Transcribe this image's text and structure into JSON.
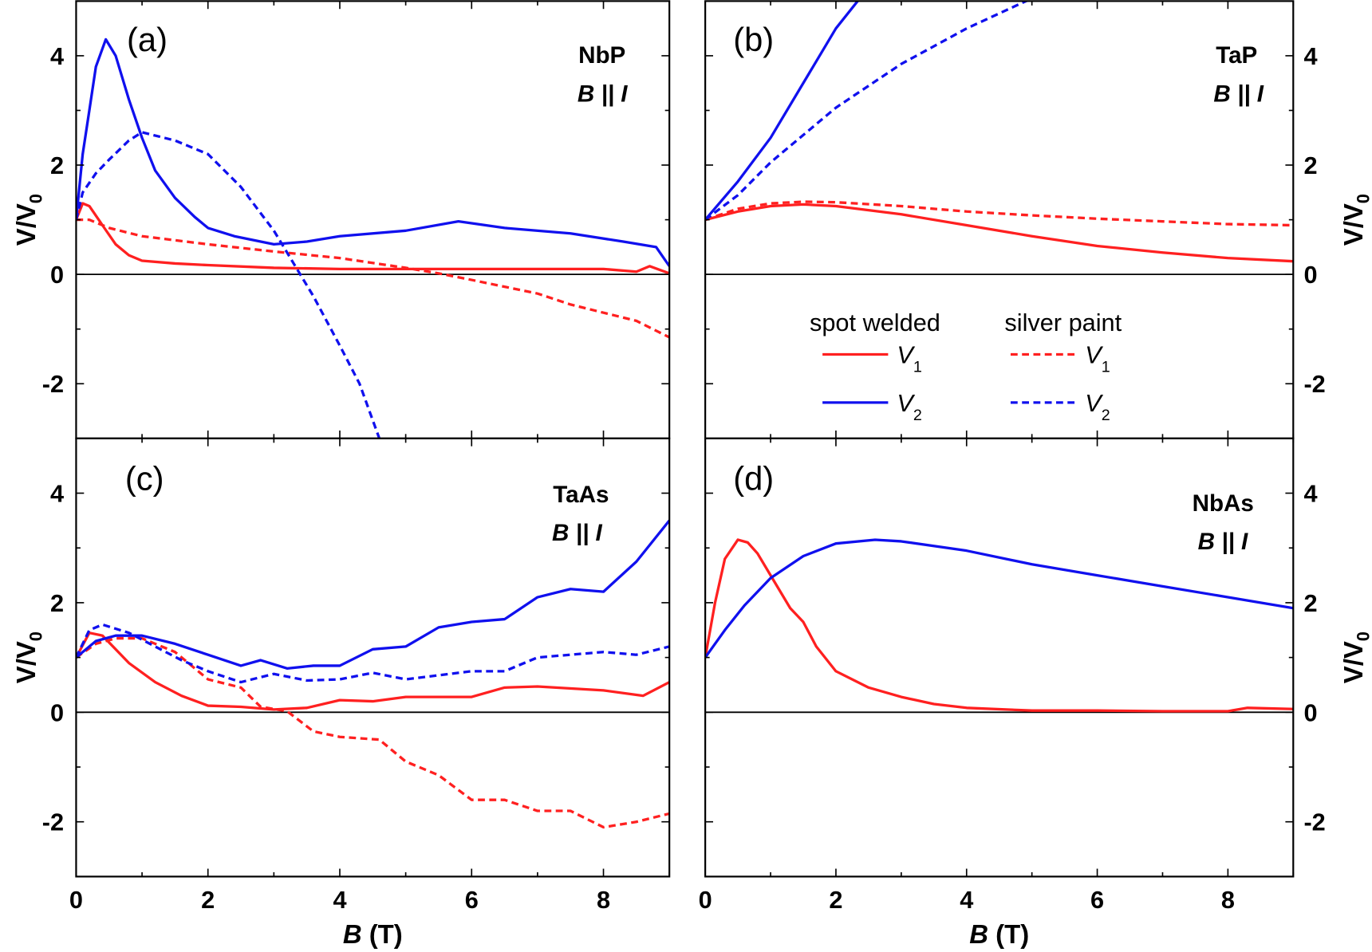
{
  "chart_data": [
    {
      "type": "line",
      "panel_label": "(a)",
      "material": "NbP",
      "condition": "B || I",
      "xlabel": "B (T)",
      "ylabel": "V/V0",
      "xlim": [
        0,
        9
      ],
      "ylim": [
        -3,
        5
      ],
      "xticks": [
        "0",
        "2",
        "4",
        "6",
        "8"
      ],
      "yticks": [
        "-2",
        "0",
        "2",
        "4"
      ],
      "ytick_side": "left",
      "series": [
        {
          "name": "spot welded V1",
          "color": "#ff2020",
          "style": "solid",
          "x": [
            0,
            0.1,
            0.2,
            0.4,
            0.6,
            0.8,
            1,
            1.5,
            2,
            3,
            4,
            5,
            6,
            7,
            8,
            8.5,
            8.7,
            9
          ],
          "y": [
            1.0,
            1.3,
            1.25,
            0.9,
            0.55,
            0.35,
            0.25,
            0.2,
            0.17,
            0.12,
            0.1,
            0.1,
            0.1,
            0.1,
            0.1,
            0.05,
            0.15,
            0.02
          ]
        },
        {
          "name": "silver paint V1",
          "color": "#ff2020",
          "style": "dashed",
          "x": [
            0,
            0.2,
            0.5,
            1,
            2,
            3,
            4,
            5,
            5.5,
            6,
            7,
            7.5,
            8,
            8.5,
            9
          ],
          "y": [
            1.0,
            1.0,
            0.85,
            0.7,
            0.55,
            0.42,
            0.3,
            0.12,
            0.02,
            -0.1,
            -0.35,
            -0.55,
            -0.7,
            -0.85,
            -1.15
          ]
        },
        {
          "name": "spot welded V2",
          "color": "#1010ee",
          "style": "solid",
          "x": [
            0,
            0.1,
            0.2,
            0.3,
            0.45,
            0.6,
            0.8,
            1,
            1.2,
            1.5,
            1.8,
            2,
            2.4,
            2.8,
            3,
            3.5,
            4,
            5,
            5.8,
            6.5,
            7.5,
            8.3,
            8.8,
            9
          ],
          "y": [
            1.0,
            2.2,
            3.0,
            3.8,
            4.3,
            4.0,
            3.2,
            2.5,
            1.9,
            1.4,
            1.05,
            0.85,
            0.7,
            0.6,
            0.55,
            0.6,
            0.7,
            0.8,
            0.97,
            0.85,
            0.75,
            0.6,
            0.5,
            0.15
          ]
        },
        {
          "name": "silver paint V2",
          "color": "#1010ee",
          "style": "dashed",
          "x": [
            0,
            0.1,
            0.3,
            0.5,
            0.8,
            1,
            1.5,
            2,
            2.5,
            3,
            3.3,
            3.6,
            4,
            4.3,
            4.6
          ],
          "y": [
            1.0,
            1.5,
            1.85,
            2.1,
            2.45,
            2.6,
            2.45,
            2.2,
            1.6,
            0.8,
            0.2,
            -0.4,
            -1.3,
            -2.0,
            -3.0
          ]
        }
      ]
    },
    {
      "type": "line",
      "panel_label": "(b)",
      "material": "TaP",
      "condition": "B || I",
      "xlabel": "B (T)",
      "ylabel": "V/V0",
      "xlim": [
        0,
        9
      ],
      "ylim": [
        -3,
        5
      ],
      "xticks": [
        "0",
        "2",
        "4",
        "6",
        "8"
      ],
      "yticks": [
        "-2",
        "0",
        "2",
        "4"
      ],
      "ytick_side": "right",
      "series": [
        {
          "name": "spot welded V1",
          "color": "#ff2020",
          "style": "solid",
          "x": [
            0,
            0.5,
            1,
            1.5,
            2,
            3,
            4,
            5,
            6,
            7,
            8,
            9
          ],
          "y": [
            1.0,
            1.15,
            1.25,
            1.28,
            1.25,
            1.1,
            0.9,
            0.7,
            0.52,
            0.4,
            0.3,
            0.24
          ]
        },
        {
          "name": "silver paint V1",
          "color": "#ff2020",
          "style": "dashed",
          "x": [
            0,
            0.5,
            1,
            1.5,
            2,
            3,
            4,
            5,
            6,
            7,
            8,
            9
          ],
          "y": [
            1.0,
            1.2,
            1.3,
            1.33,
            1.32,
            1.25,
            1.15,
            1.08,
            1.02,
            0.97,
            0.92,
            0.9
          ]
        },
        {
          "name": "spot welded V2",
          "color": "#1010ee",
          "style": "solid",
          "x": [
            0,
            0.5,
            1,
            1.5,
            2,
            2.4
          ],
          "y": [
            1.0,
            1.7,
            2.5,
            3.5,
            4.5,
            5.1
          ]
        },
        {
          "name": "silver paint V2",
          "color": "#1010ee",
          "style": "dashed",
          "x": [
            0,
            0.5,
            1,
            2,
            3,
            4,
            5
          ],
          "y": [
            1.0,
            1.45,
            2.05,
            3.05,
            3.85,
            4.5,
            5.05
          ]
        }
      ]
    },
    {
      "type": "line",
      "panel_label": "(c)",
      "material": "TaAs",
      "condition": "B || I",
      "xlabel": "B (T)",
      "ylabel": "V/V0",
      "xlim": [
        0,
        9
      ],
      "ylim": [
        -3,
        5
      ],
      "xticks": [
        "0",
        "2",
        "4",
        "6",
        "8"
      ],
      "yticks": [
        "-2",
        "0",
        "2",
        "4"
      ],
      "ytick_side": "left",
      "series": [
        {
          "name": "spot welded V1",
          "color": "#ff2020",
          "style": "solid",
          "x": [
            0,
            0.2,
            0.4,
            0.8,
            1.2,
            1.6,
            2,
            2.5,
            3,
            3.5,
            4,
            4.5,
            5,
            6,
            6.5,
            7,
            8,
            8.6,
            9
          ],
          "y": [
            1.0,
            1.45,
            1.4,
            0.9,
            0.55,
            0.3,
            0.12,
            0.1,
            0.05,
            0.08,
            0.22,
            0.2,
            0.28,
            0.28,
            0.45,
            0.47,
            0.4,
            0.3,
            0.55
          ]
        },
        {
          "name": "silver paint V1",
          "color": "#ff2020",
          "style": "dashed",
          "x": [
            0,
            0.3,
            0.6,
            1,
            1.5,
            2,
            2.5,
            2.8,
            3.2,
            3.6,
            4,
            4.6,
            5,
            5.5,
            6,
            6.5,
            7,
            7.5,
            8,
            8.5,
            9
          ],
          "y": [
            1.0,
            1.25,
            1.35,
            1.35,
            1.1,
            0.6,
            0.45,
            0.1,
            0.02,
            -0.35,
            -0.45,
            -0.5,
            -0.9,
            -1.15,
            -1.6,
            -1.6,
            -1.8,
            -1.8,
            -2.1,
            -2.0,
            -1.85
          ]
        },
        {
          "name": "spot welded V2",
          "color": "#1010ee",
          "style": "solid",
          "x": [
            0,
            0.3,
            0.6,
            1,
            1.5,
            2,
            2.5,
            2.8,
            3.2,
            3.6,
            4,
            4.5,
            5,
            5.5,
            6,
            6.5,
            7,
            7.5,
            8,
            8.5,
            9
          ],
          "y": [
            1.0,
            1.3,
            1.4,
            1.4,
            1.25,
            1.05,
            0.85,
            0.95,
            0.8,
            0.85,
            0.85,
            1.15,
            1.2,
            1.55,
            1.65,
            1.7,
            2.1,
            2.25,
            2.2,
            2.75,
            3.5
          ]
        },
        {
          "name": "silver paint V2",
          "color": "#1010ee",
          "style": "dashed",
          "x": [
            0,
            0.2,
            0.4,
            0.8,
            1.2,
            1.6,
            2,
            2.5,
            3,
            3.5,
            4,
            4.5,
            5,
            6,
            6.5,
            7,
            8,
            8.5,
            9
          ],
          "y": [
            1.0,
            1.5,
            1.6,
            1.45,
            1.2,
            0.95,
            0.75,
            0.55,
            0.7,
            0.58,
            0.6,
            0.72,
            0.6,
            0.75,
            0.75,
            1.0,
            1.1,
            1.05,
            1.2
          ]
        }
      ]
    },
    {
      "type": "line",
      "panel_label": "(d)",
      "material": "NbAs",
      "condition": "B || I",
      "xlabel": "B (T)",
      "ylabel": "V/V0",
      "xlim": [
        0,
        9
      ],
      "ylim": [
        -3,
        5
      ],
      "xticks": [
        "0",
        "2",
        "4",
        "6",
        "8"
      ],
      "yticks": [
        "-2",
        "0",
        "2",
        "4"
      ],
      "ytick_side": "right",
      "series": [
        {
          "name": "spot welded V1",
          "color": "#ff2020",
          "style": "solid",
          "x": [
            0,
            0.15,
            0.3,
            0.5,
            0.65,
            0.8,
            1,
            1.3,
            1.5,
            1.7,
            2,
            2.5,
            3,
            3.5,
            4,
            5,
            6,
            7,
            8,
            8.3,
            9
          ],
          "y": [
            1.0,
            2.0,
            2.8,
            3.15,
            3.1,
            2.9,
            2.5,
            1.9,
            1.65,
            1.2,
            0.75,
            0.45,
            0.28,
            0.15,
            0.08,
            0.03,
            0.03,
            0.02,
            0.02,
            0.08,
            0.06
          ]
        },
        {
          "name": "spot welded V2",
          "color": "#1010ee",
          "style": "solid",
          "x": [
            0,
            0.3,
            0.6,
            1,
            1.5,
            2,
            2.6,
            3,
            4,
            5,
            6,
            7,
            8,
            9
          ],
          "y": [
            1.0,
            1.5,
            1.95,
            2.45,
            2.85,
            3.08,
            3.15,
            3.12,
            2.95,
            2.7,
            2.5,
            2.3,
            2.1,
            1.9
          ]
        }
      ]
    }
  ],
  "legend": {
    "location": "panel (b), lower half",
    "col1_title": "spot welded",
    "col2_title": "silver paint",
    "entries": [
      {
        "label": "V",
        "sub": "1",
        "color": "#ff2020"
      },
      {
        "label": "V",
        "sub": "2",
        "color": "#1010ee"
      }
    ]
  },
  "axis_text": {
    "ylabel_main": "V/V",
    "ylabel_sub": "0",
    "xlabel_main": "B",
    "xlabel_unit": " (T)"
  }
}
